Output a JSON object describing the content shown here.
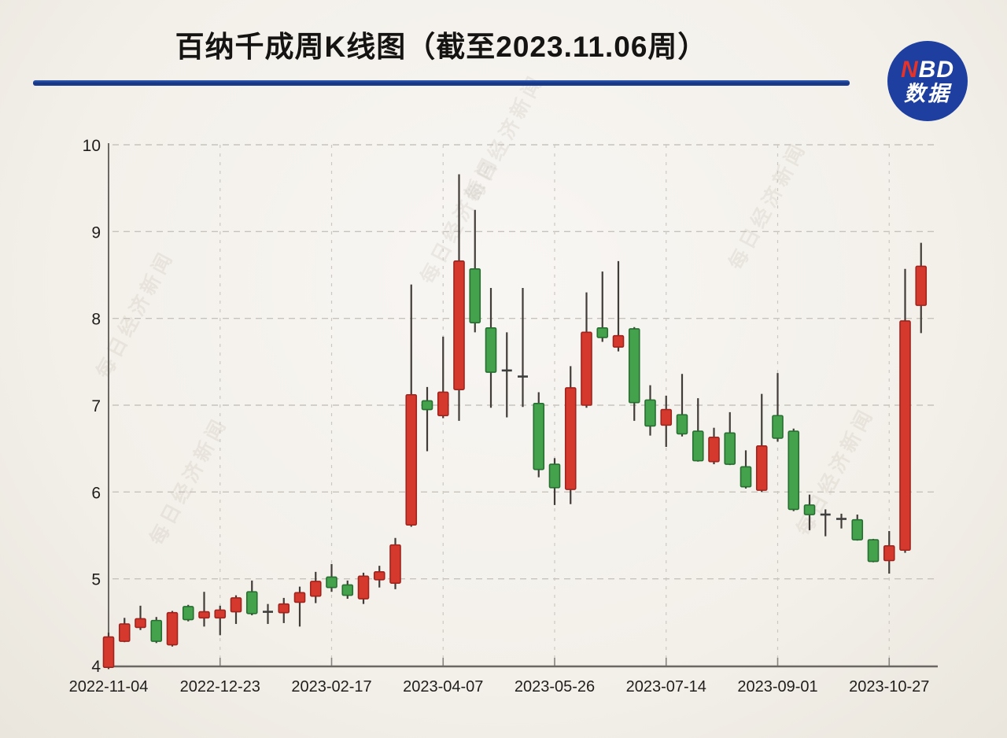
{
  "header": {
    "title": "百纳千成周K线图（截至2023.11.06周）"
  },
  "logo": {
    "line1_accent": "N",
    "line1_rest": "BD",
    "line2": "数据",
    "circle_color": "#1e3f9f",
    "accent_color": "#e5332a"
  },
  "watermark": {
    "text": "每日经济新闻"
  },
  "chart_data": {
    "type": "candlestick",
    "title": "百纳千成周K线图（截至2023.11.06周）",
    "ylabel": "",
    "xlabel": "",
    "ylim": [
      4,
      10
    ],
    "y_ticks": [
      4,
      5,
      6,
      7,
      8,
      9,
      10
    ],
    "grid": true,
    "up_color": "#d5392e",
    "up_border": "#9e241d",
    "down_color": "#44a14c",
    "down_border": "#276e31",
    "doji_color": "#3e3e3e",
    "wick_color": "#423c38",
    "x_tick_indices": [
      0,
      7,
      14,
      21,
      28,
      35,
      42,
      49
    ],
    "x_tick_labels": [
      "2022-11-04",
      "2022-12-23",
      "2023-02-17",
      "2023-04-07",
      "2023-05-26",
      "2023-07-14",
      "2023-09-01",
      "2023-10-27"
    ],
    "candles": [
      {
        "o": 3.98,
        "c": 4.33,
        "h": 4.38,
        "l": 3.96,
        "d": "u"
      },
      {
        "o": 4.28,
        "c": 4.48,
        "h": 4.55,
        "l": 4.27,
        "d": "u"
      },
      {
        "o": 4.44,
        "c": 4.54,
        "h": 4.69,
        "l": 4.41,
        "d": "u"
      },
      {
        "o": 4.52,
        "c": 4.28,
        "h": 4.56,
        "l": 4.26,
        "d": "d"
      },
      {
        "o": 4.24,
        "c": 4.61,
        "h": 4.63,
        "l": 4.22,
        "d": "u"
      },
      {
        "o": 4.68,
        "c": 4.53,
        "h": 4.7,
        "l": 4.51,
        "d": "d"
      },
      {
        "o": 4.55,
        "c": 4.62,
        "h": 4.85,
        "l": 4.45,
        "d": "u"
      },
      {
        "o": 4.55,
        "c": 4.64,
        "h": 4.69,
        "l": 4.35,
        "d": "u"
      },
      {
        "o": 4.62,
        "c": 4.78,
        "h": 4.81,
        "l": 4.48,
        "d": "u"
      },
      {
        "o": 4.85,
        "c": 4.6,
        "h": 4.98,
        "l": 4.58,
        "d": "d"
      },
      {
        "o": 4.62,
        "c": 4.62,
        "h": 4.71,
        "l": 4.48,
        "d": "f"
      },
      {
        "o": 4.61,
        "c": 4.71,
        "h": 4.78,
        "l": 4.49,
        "d": "u"
      },
      {
        "o": 4.73,
        "c": 4.84,
        "h": 4.91,
        "l": 4.45,
        "d": "u"
      },
      {
        "o": 4.8,
        "c": 4.97,
        "h": 5.08,
        "l": 4.72,
        "d": "u"
      },
      {
        "o": 5.02,
        "c": 4.9,
        "h": 5.17,
        "l": 4.85,
        "d": "d"
      },
      {
        "o": 4.93,
        "c": 4.81,
        "h": 4.98,
        "l": 4.77,
        "d": "d"
      },
      {
        "o": 4.77,
        "c": 5.03,
        "h": 5.07,
        "l": 4.71,
        "d": "u"
      },
      {
        "o": 4.99,
        "c": 5.08,
        "h": 5.15,
        "l": 4.9,
        "d": "u"
      },
      {
        "o": 4.95,
        "c": 5.39,
        "h": 5.47,
        "l": 4.88,
        "d": "u"
      },
      {
        "o": 5.62,
        "c": 7.12,
        "h": 8.39,
        "l": 5.6,
        "d": "u"
      },
      {
        "o": 7.05,
        "c": 6.95,
        "h": 7.21,
        "l": 6.47,
        "d": "d"
      },
      {
        "o": 6.88,
        "c": 7.15,
        "h": 7.79,
        "l": 6.85,
        "d": "u"
      },
      {
        "o": 7.18,
        "c": 8.66,
        "h": 9.66,
        "l": 6.82,
        "d": "u"
      },
      {
        "o": 8.57,
        "c": 7.95,
        "h": 9.25,
        "l": 7.84,
        "d": "d"
      },
      {
        "o": 7.89,
        "c": 7.38,
        "h": 8.35,
        "l": 6.97,
        "d": "d"
      },
      {
        "o": 7.4,
        "c": 7.4,
        "h": 7.84,
        "l": 6.86,
        "d": "f"
      },
      {
        "o": 7.33,
        "c": 7.33,
        "h": 8.35,
        "l": 6.98,
        "d": "f"
      },
      {
        "o": 7.02,
        "c": 6.26,
        "h": 7.15,
        "l": 6.17,
        "d": "d"
      },
      {
        "o": 6.32,
        "c": 6.05,
        "h": 6.39,
        "l": 5.85,
        "d": "d"
      },
      {
        "o": 6.03,
        "c": 7.2,
        "h": 7.45,
        "l": 5.86,
        "d": "u"
      },
      {
        "o": 7.0,
        "c": 7.84,
        "h": 8.3,
        "l": 6.97,
        "d": "u"
      },
      {
        "o": 7.89,
        "c": 7.78,
        "h": 8.54,
        "l": 7.73,
        "d": "d"
      },
      {
        "o": 7.67,
        "c": 7.8,
        "h": 8.66,
        "l": 7.62,
        "d": "u"
      },
      {
        "o": 7.88,
        "c": 7.03,
        "h": 7.9,
        "l": 6.82,
        "d": "d"
      },
      {
        "o": 7.06,
        "c": 6.76,
        "h": 7.23,
        "l": 6.65,
        "d": "d"
      },
      {
        "o": 6.77,
        "c": 6.95,
        "h": 7.11,
        "l": 6.52,
        "d": "u"
      },
      {
        "o": 6.89,
        "c": 6.67,
        "h": 7.36,
        "l": 6.64,
        "d": "d"
      },
      {
        "o": 6.7,
        "c": 6.36,
        "h": 7.08,
        "l": 6.35,
        "d": "d"
      },
      {
        "o": 6.35,
        "c": 6.63,
        "h": 6.74,
        "l": 6.32,
        "d": "u"
      },
      {
        "o": 6.68,
        "c": 6.32,
        "h": 6.92,
        "l": 6.31,
        "d": "d"
      },
      {
        "o": 6.29,
        "c": 6.06,
        "h": 6.48,
        "l": 6.04,
        "d": "d"
      },
      {
        "o": 6.02,
        "c": 6.53,
        "h": 7.13,
        "l": 6.0,
        "d": "u"
      },
      {
        "o": 6.88,
        "c": 6.62,
        "h": 7.37,
        "l": 6.58,
        "d": "d"
      },
      {
        "o": 6.7,
        "c": 5.8,
        "h": 6.73,
        "l": 5.78,
        "d": "d"
      },
      {
        "o": 5.85,
        "c": 5.74,
        "h": 5.97,
        "l": 5.56,
        "d": "d"
      },
      {
        "o": 5.74,
        "c": 5.74,
        "h": 5.8,
        "l": 5.49,
        "d": "f"
      },
      {
        "o": 5.69,
        "c": 5.69,
        "h": 5.75,
        "l": 5.58,
        "d": "f"
      },
      {
        "o": 5.68,
        "c": 5.45,
        "h": 5.74,
        "l": 5.44,
        "d": "d"
      },
      {
        "o": 5.45,
        "c": 5.2,
        "h": 5.46,
        "l": 5.19,
        "d": "d"
      },
      {
        "o": 5.21,
        "c": 5.38,
        "h": 5.55,
        "l": 5.06,
        "d": "u"
      },
      {
        "o": 5.33,
        "c": 7.97,
        "h": 8.57,
        "l": 5.3,
        "d": "u"
      },
      {
        "o": 8.15,
        "c": 8.6,
        "h": 8.87,
        "l": 7.83,
        "d": "u"
      }
    ]
  }
}
